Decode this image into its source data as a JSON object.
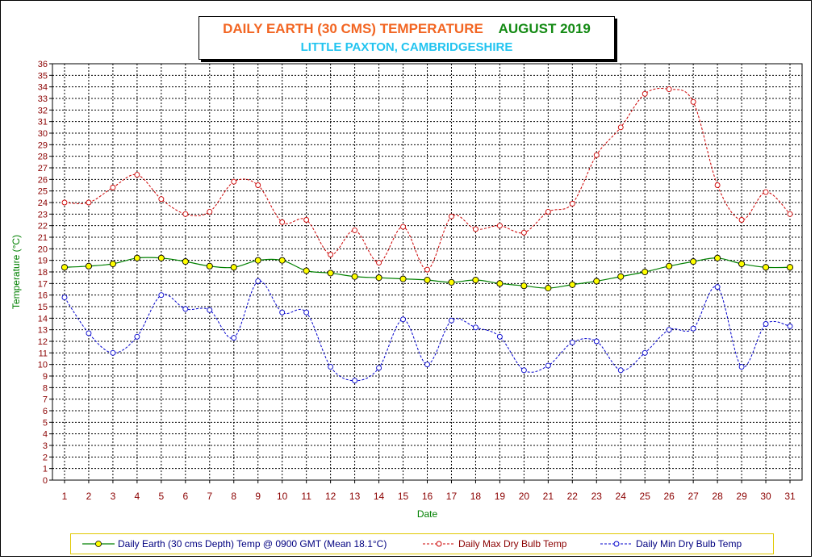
{
  "title": {
    "main": "DAILY EARTH (30 CMS) TEMPERATURE",
    "month": "AUGUST 2019",
    "location": "LITTLE PAXTON, CAMBRIDGESHIRE"
  },
  "colors": {
    "earth_line": "#008000",
    "earth_marker": "#ffff00",
    "max_line": "#cc0000",
    "min_line": "#0000cc",
    "axis_text": "#8b0000",
    "axis_label": "#008000",
    "grid": "#000000"
  },
  "chart_data": {
    "type": "line",
    "xlabel": "Date",
    "ylabel": "Temperature (°C)",
    "ylim": [
      0,
      36
    ],
    "xlim": [
      1,
      31
    ],
    "grid": true,
    "legend_position": "bottom",
    "x": [
      1,
      2,
      3,
      4,
      5,
      6,
      7,
      8,
      9,
      10,
      11,
      12,
      13,
      14,
      15,
      16,
      17,
      18,
      19,
      20,
      21,
      22,
      23,
      24,
      25,
      26,
      27,
      28,
      29,
      30,
      31
    ],
    "series": [
      {
        "name": "Daily Earth (30 cms Depth) Temp @ 0900 GMT (Mean 18.1°C)",
        "values": [
          18.4,
          18.5,
          18.7,
          19.2,
          19.2,
          18.9,
          18.5,
          18.4,
          19.0,
          19.0,
          18.1,
          17.9,
          17.6,
          17.5,
          17.4,
          17.3,
          17.1,
          17.3,
          17.0,
          16.8,
          16.6,
          16.9,
          17.2,
          17.6,
          18.0,
          18.5,
          18.9,
          19.2,
          18.7,
          18.4,
          18.4
        ]
      },
      {
        "name": "Daily Max Dry Bulb Temp",
        "values": [
          24.0,
          24.0,
          25.3,
          26.4,
          24.3,
          23.0,
          23.2,
          25.8,
          25.5,
          22.3,
          22.5,
          19.5,
          21.6,
          18.8,
          21.9,
          18.2,
          22.8,
          21.7,
          22.0,
          21.4,
          23.2,
          23.9,
          28.1,
          30.5,
          33.4,
          33.8,
          32.7,
          25.5,
          22.5,
          24.9,
          23.0
        ]
      },
      {
        "name": "Daily Min Dry Bulb Temp",
        "values": [
          15.8,
          12.7,
          11.0,
          12.4,
          16.0,
          14.8,
          14.7,
          12.3,
          17.2,
          14.5,
          14.5,
          9.8,
          8.6,
          9.7,
          13.9,
          10.0,
          13.8,
          13.2,
          12.4,
          9.5,
          9.9,
          11.9,
          12.0,
          9.5,
          11.0,
          13.0,
          13.1,
          16.7,
          9.8,
          13.5,
          13.3
        ]
      }
    ]
  }
}
